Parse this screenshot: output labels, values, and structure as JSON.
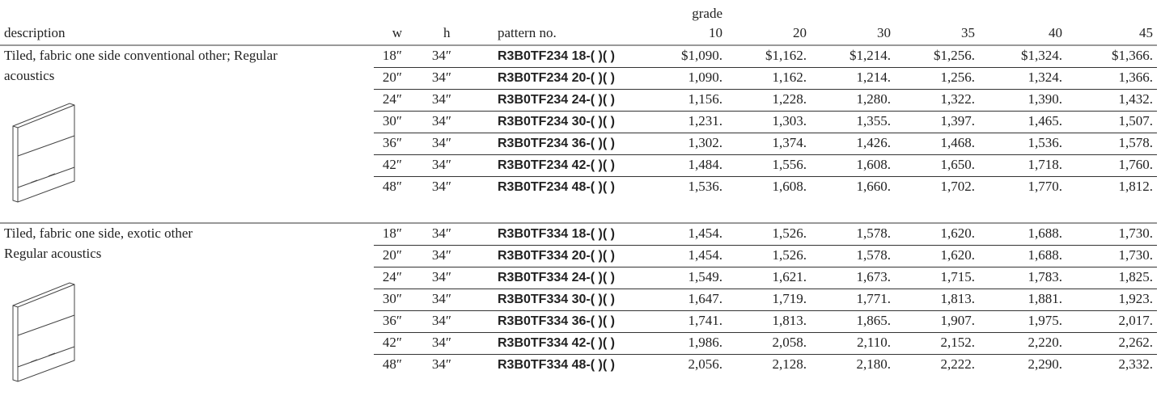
{
  "header": {
    "description": "description",
    "w": "w",
    "h": "h",
    "pattern": "pattern no.",
    "grade": "grade",
    "grades": [
      "10",
      "20",
      "30",
      "35",
      "40",
      "45"
    ]
  },
  "sections": [
    {
      "description": [
        "Tiled, fabric one side conventional other; Regular",
        "acoustics"
      ],
      "rows": [
        [
          "18″",
          "34″",
          "R3B0TF234 18-( )( )",
          "$1,090.",
          "$1,162.",
          "$1,214.",
          "$1,256.",
          "$1,324.",
          "$1,366."
        ],
        [
          "20″",
          "34″",
          "R3B0TF234 20-( )( )",
          "1,090.",
          "1,162.",
          "1,214.",
          "1,256.",
          "1,324.",
          "1,366."
        ],
        [
          "24″",
          "34″",
          "R3B0TF234 24-( )( )",
          "1,156.",
          "1,228.",
          "1,280.",
          "1,322.",
          "1,390.",
          "1,432."
        ],
        [
          "30″",
          "34″",
          "R3B0TF234 30-( )( )",
          "1,231.",
          "1,303.",
          "1,355.",
          "1,397.",
          "1,465.",
          "1,507."
        ],
        [
          "36″",
          "34″",
          "R3B0TF234 36-( )( )",
          "1,302.",
          "1,374.",
          "1,426.",
          "1,468.",
          "1,536.",
          "1,578."
        ],
        [
          "42″",
          "34″",
          "R3B0TF234 42-( )( )",
          "1,484.",
          "1,556.",
          "1,608.",
          "1,650.",
          "1,718.",
          "1,760."
        ],
        [
          "48″",
          "34″",
          "R3B0TF234 48-( )( )",
          "1,536.",
          "1,608.",
          "1,660.",
          "1,702.",
          "1,770.",
          "1,812."
        ]
      ]
    },
    {
      "description": [
        "Tiled, fabric one side, exotic other",
        "Regular acoustics"
      ],
      "rows": [
        [
          "18″",
          "34″",
          "R3B0TF334 18-( )( )",
          "1,454.",
          "1,526.",
          "1,578.",
          "1,620.",
          "1,688.",
          "1,730."
        ],
        [
          "20″",
          "34″",
          "R3B0TF334 20-( )( )",
          "1,454.",
          "1,526.",
          "1,578.",
          "1,620.",
          "1,688.",
          "1,730."
        ],
        [
          "24″",
          "34″",
          "R3B0TF334 24-( )( )",
          "1,549.",
          "1,621.",
          "1,673.",
          "1,715.",
          "1,783.",
          "1,825."
        ],
        [
          "30″",
          "34″",
          "R3B0TF334 30-( )( )",
          "1,647.",
          "1,719.",
          "1,771.",
          "1,813.",
          "1,881.",
          "1,923."
        ],
        [
          "36″",
          "34″",
          "R3B0TF334 36-( )( )",
          "1,741.",
          "1,813.",
          "1,865.",
          "1,907.",
          "1,975.",
          "2,017."
        ],
        [
          "42″",
          "34″",
          "R3B0TF334 42-( )( )",
          "1,986.",
          "2,058.",
          "2,110.",
          "2,152.",
          "2,220.",
          "2,262."
        ],
        [
          "48″",
          "34″",
          "R3B0TF334 48-( )( )",
          "2,056.",
          "2,128.",
          "2,180.",
          "2,222.",
          "2,290.",
          "2,332."
        ]
      ]
    }
  ]
}
